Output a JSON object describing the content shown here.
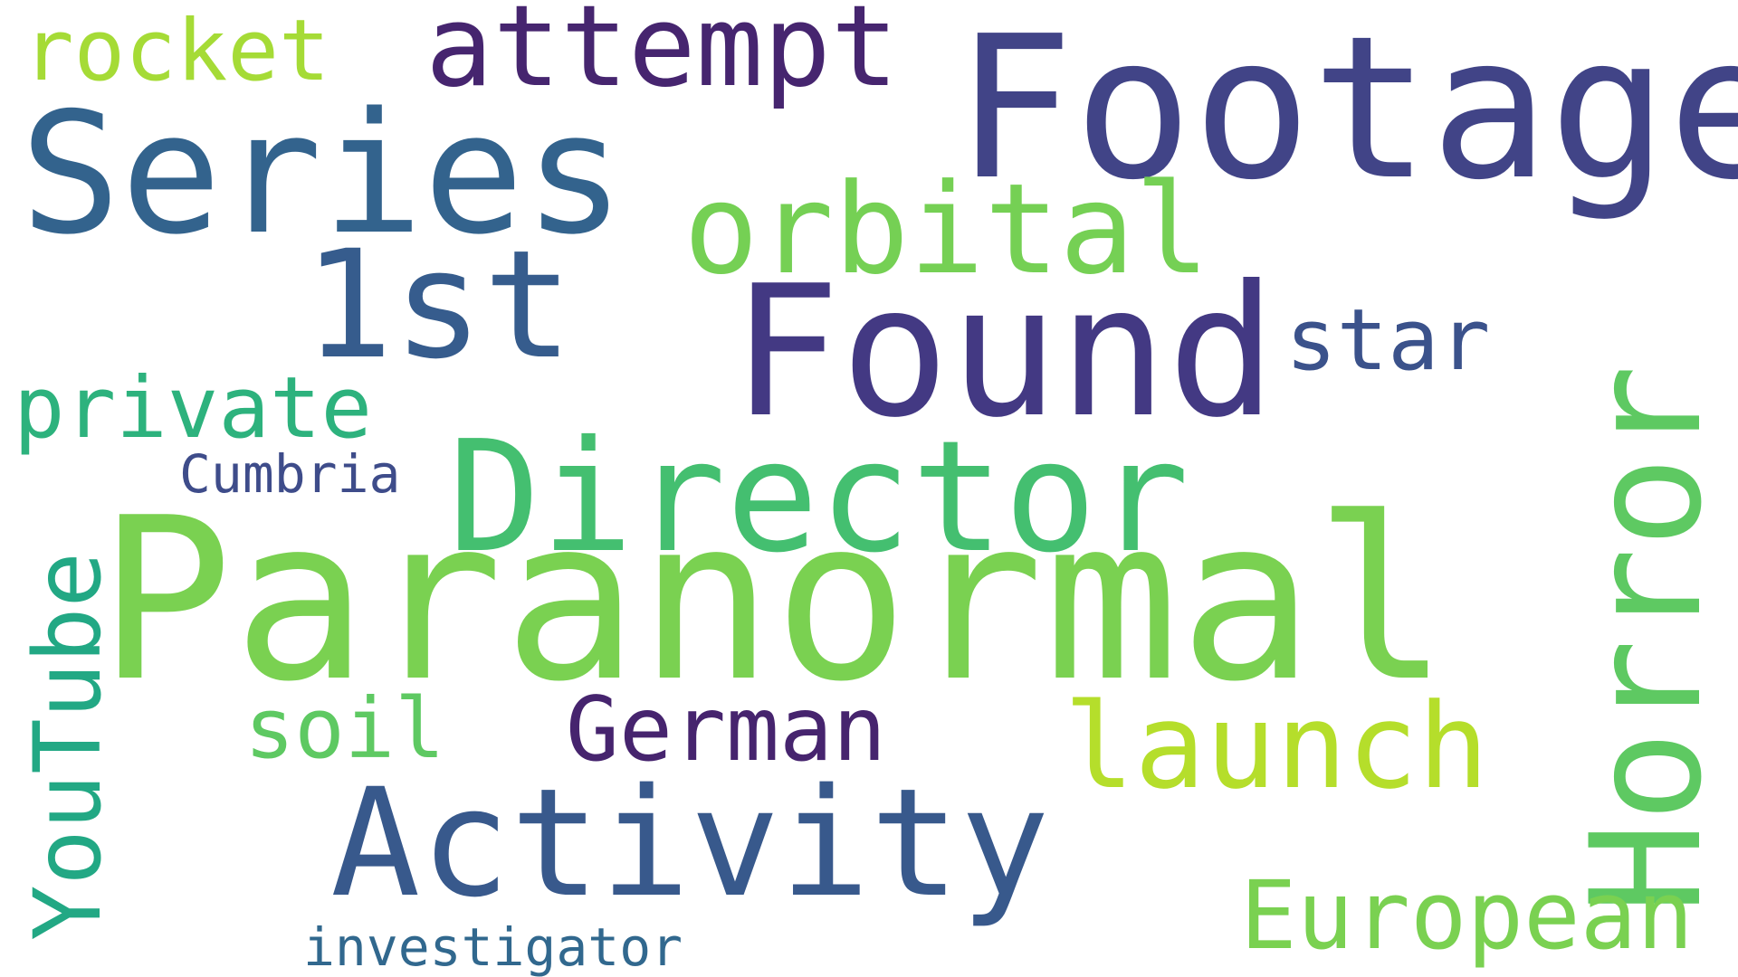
{
  "words": [
    {
      "key": "paranormal",
      "text": "Paranormal",
      "color": "#7ad151"
    },
    {
      "key": "footage",
      "text": "Footage",
      "color": "#414487"
    },
    {
      "key": "found",
      "text": "Found",
      "color": "#433983"
    },
    {
      "key": "activity",
      "text": "Activity",
      "color": "#38598c"
    },
    {
      "key": "series",
      "text": "Series",
      "color": "#33638d"
    },
    {
      "key": "director",
      "text": "Director",
      "color": "#44bf70"
    },
    {
      "key": "horror",
      "text": "Horror",
      "color": "#5ec962"
    },
    {
      "key": "first",
      "text": "1st",
      "color": "#365c8d"
    },
    {
      "key": "orbital",
      "text": "orbital",
      "color": "#75d054"
    },
    {
      "key": "attempt",
      "text": "attempt",
      "color": "#46256f"
    },
    {
      "key": "launch",
      "text": "launch",
      "color": "#b5de2b"
    },
    {
      "key": "european",
      "text": "European",
      "color": "#7ad151"
    },
    {
      "key": "youtube",
      "text": "YouTube",
      "color": "#22a884"
    },
    {
      "key": "german",
      "text": "German",
      "color": "#46246e"
    },
    {
      "key": "rocket",
      "text": "rocket",
      "color": "#a5db36"
    },
    {
      "key": "private",
      "text": "private",
      "color": "#2db27d"
    },
    {
      "key": "soil",
      "text": "soil",
      "color": "#5ec962"
    },
    {
      "key": "star",
      "text": "star",
      "color": "#3b528b"
    },
    {
      "key": "cumbria",
      "text": "Cumbria",
      "color": "#3e4c8a"
    },
    {
      "key": "investigator",
      "text": "investigator",
      "color": "#31688e"
    }
  ]
}
